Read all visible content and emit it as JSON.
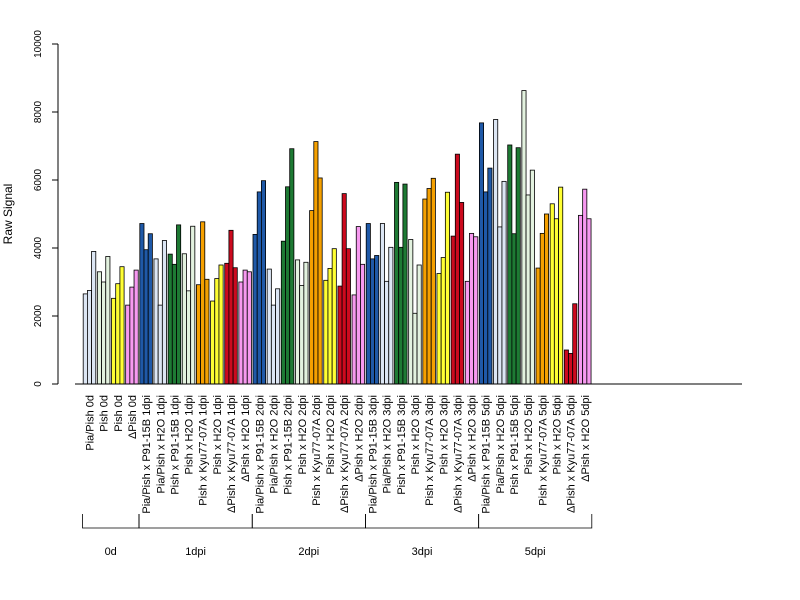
{
  "chart_data": {
    "type": "bar",
    "title": "",
    "xlabel": "",
    "ylabel": "Raw Signal",
    "ylim": [
      0,
      10000
    ],
    "yticks": [
      "0",
      "2000",
      "4000",
      "6000",
      "8000",
      "10000"
    ],
    "bars_per_category": 3,
    "categories": [
      "Pia/Pish 0d",
      "Pish 0d",
      "Pish 0d",
      "ΔPish 0d",
      "Pia/Pish x P91-15B 1dpi",
      "Pia/Pish x H2O 1dpi",
      "Pish x P91-15B 1dpi",
      "Pish x H2O 1dpi",
      "Pish x Kyu77-07A 1dpi",
      "Pish x H2O 1dpi",
      "ΔPish x Kyu77-07A 1dpi",
      "ΔPish x H2O 1dpi",
      "Pia/Pish x P91-15B 2dpi",
      "Pia/Pish x H2O 2dpi",
      "Pish x P91-15B 2dpi",
      "Pish x H2O 2dpi",
      "Pish x Kyu77-07A 2dpi",
      "Pish x H2O 2dpi",
      "ΔPish x Kyu77-07A 2dpi",
      "ΔPish x H2O 2dpi",
      "Pia/Pish x P91-15B 3dpi",
      "Pia/Pish x H2O 3dpi",
      "Pish x P91-15B 3dpi",
      "Pish x H2O 3dpi",
      "Pish x Kyu77-07A 3dpi",
      "Pish x H2O 3dpi",
      "ΔPish x Kyu77-07A 3dpi",
      "ΔPish x H2O 3dpi",
      "Pia/Pish x P91-15B 5dpi",
      "Pia/Pish x H2O 5dpi",
      "Pish x P91-15B 5dpi",
      "Pish x H2O 5dpi",
      "Pish x Kyu77-07A 5dpi",
      "Pish x H2O 5dpi",
      "ΔPish x Kyu77-07A 5dpi",
      "ΔPish x H2O 5dpi"
    ],
    "values": [
      [
        2650,
        2750,
        3900
      ],
      [
        3300,
        3000,
        3750
      ],
      [
        2520,
        2950,
        3450
      ],
      [
        2320,
        2850,
        3350
      ],
      [
        4720,
        3950,
        4420
      ],
      [
        3680,
        2320,
        4220
      ],
      [
        3820,
        3520,
        4680
      ],
      [
        3830,
        2740,
        4640
      ],
      [
        2920,
        4770,
        3080
      ],
      [
        2440,
        3100,
        3500
      ],
      [
        3550,
        4520,
        3420
      ],
      [
        3000,
        3350,
        3300
      ],
      [
        4400,
        5650,
        5980
      ],
      [
        3380,
        2320,
        2800
      ],
      [
        4200,
        5800,
        6920
      ],
      [
        3650,
        2900,
        3580
      ],
      [
        5100,
        7130,
        6060
      ],
      [
        3050,
        3400,
        3980
      ],
      [
        2880,
        5600,
        3980
      ],
      [
        2620,
        4630,
        3520
      ],
      [
        4720,
        3680,
        3780
      ],
      [
        4720,
        3020,
        4020
      ],
      [
        5930,
        4020,
        5880
      ],
      [
        4250,
        2080,
        3500
      ],
      [
        5440,
        5750,
        6050
      ],
      [
        3250,
        3720,
        5640
      ],
      [
        4350,
        6760,
        5340
      ],
      [
        3020,
        4430,
        4330
      ],
      [
        7680,
        5650,
        6350
      ],
      [
        7780,
        4620,
        5960
      ],
      [
        7030,
        4420,
        6950
      ],
      [
        8630,
        5560,
        6290
      ],
      [
        3410,
        4430,
        5000
      ],
      [
        5300,
        4860,
        5790
      ],
      [
        1000,
        900,
        2360
      ],
      [
        4960,
        5730,
        4860
      ]
    ],
    "colors": [
      "#dce6f4",
      "#e3f2df",
      "#ffff33",
      "#f799f0",
      "#1f59a8",
      "#dce6f4",
      "#1e7a34",
      "#e3f2df",
      "#f5a000",
      "#ffff33",
      "#cc0a1e",
      "#f799f0",
      "#1f59a8",
      "#dce6f4",
      "#1e7a34",
      "#e3f2df",
      "#f5a000",
      "#ffff33",
      "#cc0a1e",
      "#f799f0",
      "#1f59a8",
      "#dce6f4",
      "#1e7a34",
      "#e3f2df",
      "#f5a000",
      "#ffff33",
      "#cc0a1e",
      "#f799f0",
      "#1f59a8",
      "#dce6f4",
      "#1e7a34",
      "#e3f2df",
      "#f5a000",
      "#ffff33",
      "#cc0a1e",
      "#f799f0"
    ],
    "groups": [
      {
        "label": "0d",
        "start": 0,
        "end": 3
      },
      {
        "label": "1dpi",
        "start": 4,
        "end": 11
      },
      {
        "label": "2dpi",
        "start": 12,
        "end": 19
      },
      {
        "label": "3dpi",
        "start": 20,
        "end": 27
      },
      {
        "label": "5dpi",
        "start": 28,
        "end": 35
      }
    ],
    "grid": false,
    "legend": "none"
  }
}
